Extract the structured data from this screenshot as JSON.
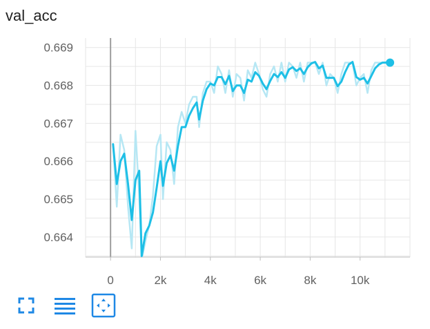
{
  "card": {
    "title": "val_acc"
  },
  "toolbar": {
    "buttons": [
      {
        "icon": "fullscreen-icon"
      },
      {
        "icon": "data-selection-icon"
      },
      {
        "icon": "fit-domain-icon"
      }
    ]
  },
  "colors": {
    "smoothed": "#1ebfe6",
    "raw": "#b6e7f4",
    "grid": "#e6e6e6",
    "axis": "#9e9e9e",
    "icon": "#1e88e5"
  },
  "chart_data": {
    "type": "line",
    "title": "val_acc",
    "xlabel": "",
    "ylabel": "",
    "xlim": [
      -1000,
      12000
    ],
    "ylim": [
      0.66347,
      0.66925
    ],
    "x_ticks": [
      0,
      2000,
      4000,
      6000,
      8000,
      10000
    ],
    "x_tick_labels": [
      "0",
      "2k",
      "4k",
      "6k",
      "8k",
      "10k"
    ],
    "y_ticks": [
      0.664,
      0.665,
      0.666,
      0.667,
      0.668,
      0.669
    ],
    "y_tick_labels": [
      "0.664",
      "0.665",
      "0.666",
      "0.667",
      "0.668",
      "0.669"
    ],
    "grid": true,
    "legend": "none",
    "series": [
      {
        "smoothed": true,
        "x": [
          100,
          250,
          400,
          550,
          700,
          850,
          1000,
          1150,
          1250,
          1400,
          1550,
          1700,
          1850,
          2000,
          2100,
          2250,
          2400,
          2550,
          2700,
          2850,
          3000,
          3150,
          3300,
          3450,
          3550,
          3700,
          3850,
          4000,
          4150,
          4300,
          4450,
          4600,
          4750,
          4900,
          5050,
          5200,
          5350,
          5500,
          5650,
          5800,
          5950,
          6100,
          6250,
          6400,
          6550,
          6700,
          6850,
          7000,
          7150,
          7300,
          7450,
          7600,
          7750,
          7900,
          8050,
          8200,
          8350,
          8500,
          8650,
          8800,
          8950,
          9100,
          9250,
          9400,
          9550,
          9700,
          9850,
          10000,
          10150,
          10300,
          10450,
          10600,
          10750,
          10900,
          11050,
          11200
        ],
        "y": [
          0.66645,
          0.6654,
          0.666,
          0.6662,
          0.6654,
          0.66445,
          0.6655,
          0.66575,
          0.6635,
          0.6641,
          0.6643,
          0.66465,
          0.6653,
          0.666,
          0.66535,
          0.66595,
          0.66615,
          0.66575,
          0.6664,
          0.6669,
          0.6669,
          0.6672,
          0.6674,
          0.66755,
          0.6671,
          0.6676,
          0.6679,
          0.66805,
          0.668,
          0.66822,
          0.66822,
          0.66803,
          0.66825,
          0.66785,
          0.668,
          0.668,
          0.6678,
          0.66815,
          0.6681,
          0.66835,
          0.66825,
          0.66805,
          0.6679,
          0.66812,
          0.6683,
          0.66822,
          0.66835,
          0.6682,
          0.66842,
          0.66848,
          0.66838,
          0.66845,
          0.6683,
          0.66848,
          0.66858,
          0.66862,
          0.66845,
          0.66852,
          0.6682,
          0.6682,
          0.6682,
          0.66798,
          0.6681,
          0.66835,
          0.66855,
          0.66862,
          0.66822,
          0.66815,
          0.6682,
          0.66805,
          0.66825,
          0.66845,
          0.66855,
          0.6686,
          0.6686,
          0.6686
        ]
      },
      {
        "smoothed": false,
        "x": [
          100,
          250,
          400,
          550,
          700,
          850,
          1000,
          1150,
          1250,
          1400,
          1550,
          1700,
          1850,
          2000,
          2100,
          2250,
          2400,
          2550,
          2700,
          2850,
          3000,
          3150,
          3300,
          3450,
          3550,
          3700,
          3850,
          4000,
          4150,
          4300,
          4450,
          4600,
          4750,
          4900,
          5050,
          5200,
          5350,
          5500,
          5650,
          5800,
          5950,
          6100,
          6250,
          6400,
          6550,
          6700,
          6850,
          7000,
          7150,
          7300,
          7450,
          7600,
          7750,
          7900,
          8050,
          8200,
          8350,
          8500,
          8650,
          8800,
          8950,
          9100,
          9250,
          9400,
          9550,
          9700,
          9850,
          10000,
          10150,
          10300,
          10450,
          10600,
          10750,
          10900,
          11050,
          11200
        ],
        "y": [
          0.66645,
          0.6648,
          0.6667,
          0.6663,
          0.6648,
          0.6637,
          0.6668,
          0.6651,
          0.6634,
          0.6639,
          0.6643,
          0.6651,
          0.6664,
          0.6667,
          0.665,
          0.6665,
          0.6663,
          0.6654,
          0.6669,
          0.6673,
          0.667,
          0.6675,
          0.6677,
          0.6677,
          0.6669,
          0.6678,
          0.6681,
          0.6681,
          0.6678,
          0.6685,
          0.6683,
          0.6678,
          0.6684,
          0.6677,
          0.6683,
          0.6682,
          0.6676,
          0.6684,
          0.6682,
          0.6686,
          0.6683,
          0.6679,
          0.6677,
          0.6683,
          0.6685,
          0.6681,
          0.6686,
          0.6681,
          0.6686,
          0.6685,
          0.6682,
          0.6686,
          0.6681,
          0.6686,
          0.6686,
          0.6686,
          0.6683,
          0.6686,
          0.668,
          0.6683,
          0.6682,
          0.6678,
          0.6683,
          0.6686,
          0.6686,
          0.6686,
          0.668,
          0.6682,
          0.6683,
          0.6678,
          0.6684,
          0.6686,
          0.6686,
          0.6686,
          0.6686,
          0.6686
        ]
      }
    ]
  }
}
